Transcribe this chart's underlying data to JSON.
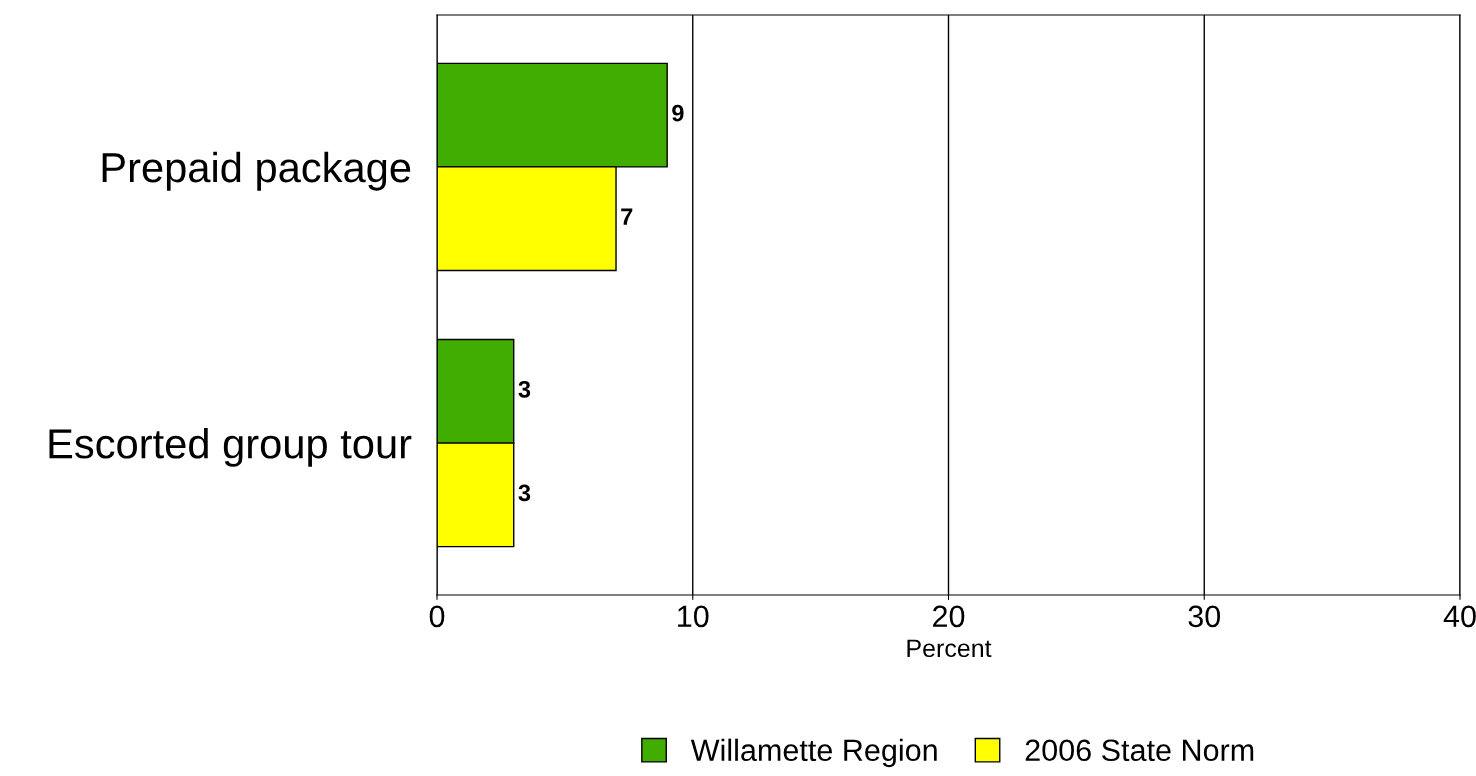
{
  "chart_data": {
    "type": "bar",
    "orientation": "horizontal",
    "categories": [
      "Prepaid package",
      "Escorted group tour"
    ],
    "series": [
      {
        "name": "Willamette Region",
        "color": "#40ad00",
        "values": [
          9,
          3
        ]
      },
      {
        "name": "2006 State Norm",
        "color": "#ffff00",
        "values": [
          7,
          3
        ]
      }
    ],
    "xlabel": "Percent",
    "xlim": [
      0,
      40
    ],
    "xticks": [
      0,
      10,
      20,
      30,
      40
    ],
    "grid": "x",
    "legend": "bottom",
    "data_labels": true
  }
}
